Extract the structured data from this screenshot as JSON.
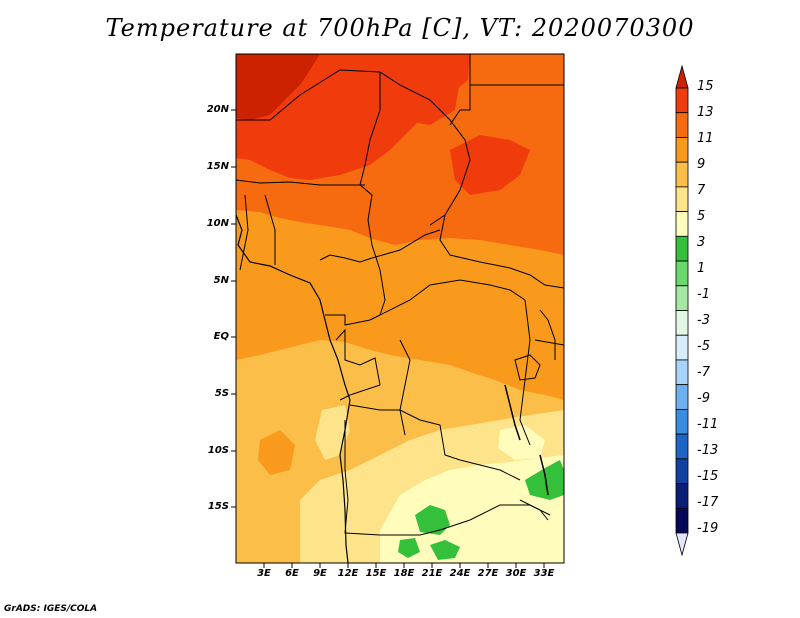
{
  "title": "Temperature at 700hPa [C], VT: 2020070300",
  "credit": "GrADS: IGES/COLA",
  "lat_labels": [
    "20N",
    "15N",
    "10N",
    "5N",
    "EQ",
    "5S",
    "10S",
    "15S"
  ],
  "lon_labels": [
    "3E",
    "6E",
    "9E",
    "12E",
    "15E",
    "18E",
    "21E",
    "24E",
    "27E",
    "30E",
    "33E"
  ],
  "colorbar": {
    "labels": [
      "15",
      "13",
      "11",
      "9",
      "7",
      "5",
      "3",
      "1",
      "-1",
      "-3",
      "-5",
      "-7",
      "-9",
      "-11",
      "-13",
      "-15",
      "-17",
      "-19"
    ],
    "colors": [
      "#cc2200",
      "#f03c0c",
      "#f66a10",
      "#f99a1c",
      "#fbbe48",
      "#fde48a",
      "#fffcbc",
      "#34c03a",
      "#6ad86c",
      "#a4e8a4",
      "#e2f8e2",
      "#d8ecfc",
      "#a8d4fa",
      "#6cb0f0",
      "#3a8ce0",
      "#1e64c4",
      "#1040a0",
      "#0a1e78",
      "#06085a",
      "#e4e4fa"
    ]
  },
  "map": {
    "region": "Central Africa",
    "field": "Temperature at 700hPa",
    "units": "C"
  }
}
